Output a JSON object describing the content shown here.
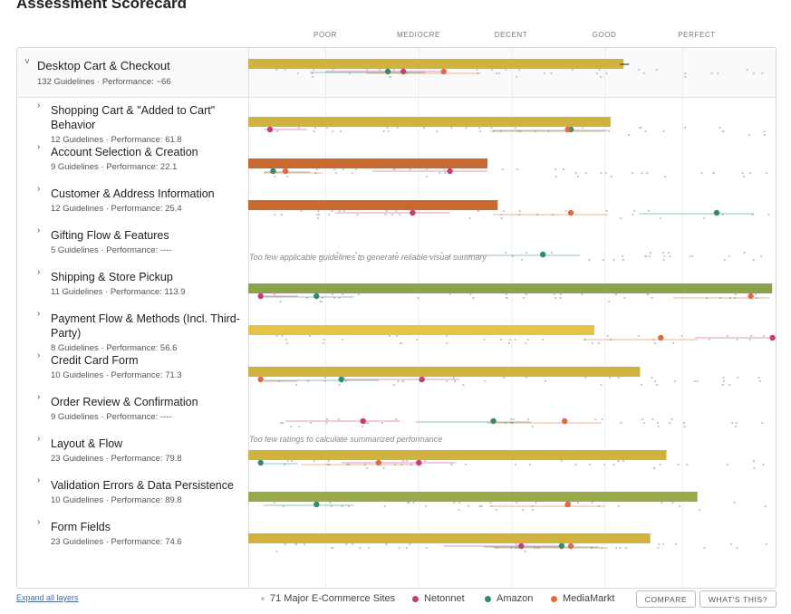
{
  "title": "Assessment Scorecard",
  "scale_labels": [
    "POOR",
    "MEDIOCRE",
    "DECENT",
    "GOOD",
    "PERFECT"
  ],
  "colors": {
    "gray": "#c3c5c8",
    "netonnet": "#c93a78",
    "amazon": "#2f8e6a",
    "mediamarkt": "#e26a42",
    "bar_mustard": "#cfb33e",
    "bar_yellow": "#e6c24a",
    "bar_orange": "#c86a30",
    "bar_olive": "#8ca24c",
    "bar_olivedark": "#97a948"
  },
  "top_group": {
    "name": "Desktop Cart & Checkout",
    "meta": "132 Guidelines · Performance: ~66"
  },
  "rows": [
    {
      "name": "Shopping Cart & \"Added to Cart\" Behavior",
      "meta": "12 Guidelines · Performance: 61.8"
    },
    {
      "name": "Account Selection & Creation",
      "meta": "9 Guidelines · Performance: 22.1"
    },
    {
      "name": "Customer & Address Information",
      "meta": "12 Guidelines · Performance: 25.4"
    },
    {
      "name": "Gifting Flow & Features",
      "meta": "5 Guidelines · Performance: ----"
    },
    {
      "name": "Shipping & Store Pickup",
      "meta": "11 Guidelines · Performance: 113.9"
    },
    {
      "name": "Payment Flow & Methods (Incl. Third-Party)",
      "meta": "8 Guidelines · Performance: 56.6"
    },
    {
      "name": "Credit Card Form",
      "meta": "10 Guidelines · Performance: 71.3"
    },
    {
      "name": "Order Review & Confirmation",
      "meta": "9 Guidelines · Performance: ----"
    },
    {
      "name": "Layout & Flow",
      "meta": "23 Guidelines · Performance: 79.8"
    },
    {
      "name": "Validation Errors & Data Persistence",
      "meta": "10 Guidelines · Performance: 89.8"
    },
    {
      "name": "Form Fields",
      "meta": "23 Guidelines · Performance: 74.6"
    }
  ],
  "notes": {
    "gifting": "Too few applicable guidelines to generate reliable visual summary",
    "order_review": "Too few ratings to calculate summarized performance"
  },
  "footer": {
    "expand": "Expand all layers",
    "legend": [
      "71 Major E-Commerce Sites",
      "Netonnet",
      "Amazon",
      "MediaMarkt"
    ],
    "compare": "COMPARE",
    "whats_this": "WHAT'S THIS?"
  },
  "chart_data": {
    "type": "bar",
    "title": "Assessment Scorecard",
    "categories": [
      "Desktop Cart & Checkout",
      "Shopping Cart & \"Added to Cart\" Behavior",
      "Account Selection & Creation",
      "Customer & Address Information",
      "Gifting Flow & Features",
      "Shipping & Store Pickup",
      "Payment Flow & Methods (Incl. Third-Party)",
      "Credit Card Form",
      "Order Review & Confirmation",
      "Layout & Flow",
      "Validation Errors & Data Persistence",
      "Form Fields"
    ],
    "values": [
      66,
      61.8,
      22.1,
      25.4,
      null,
      113.9,
      56.6,
      71.3,
      null,
      79.8,
      89.8,
      74.6
    ],
    "bar_color_keys": [
      "bar_mustard",
      "bar_mustard",
      "bar_orange",
      "bar_orange",
      null,
      "bar_olive",
      "bar_yellow",
      "bar_mustard",
      null,
      "bar_mustard",
      "bar_olivedark",
      "bar_mustard"
    ],
    "scale": {
      "min": -55,
      "max": 115,
      "categories": [
        "POOR",
        "MEDIOCRE",
        "DECENT",
        "GOOD",
        "PERFECT"
      ],
      "boundaries": [
        -55,
        -30,
        0,
        30,
        60,
        85,
        115
      ]
    },
    "series": [
      {
        "name": "Netonnet",
        "values": [
          -5,
          -48,
          10,
          -2,
          null,
          -51,
          114,
          1,
          -18,
          0,
          null,
          33
        ]
      },
      {
        "name": "Amazon",
        "values": [
          -10,
          49,
          -47,
          96,
          40,
          -33,
          null,
          -25,
          24,
          -51,
          -33,
          46
        ]
      },
      {
        "name": "MediaMarkt",
        "values": [
          8,
          48,
          -43,
          49,
          null,
          107,
          78,
          -51,
          47,
          -13,
          48,
          49
        ]
      }
    ]
  }
}
